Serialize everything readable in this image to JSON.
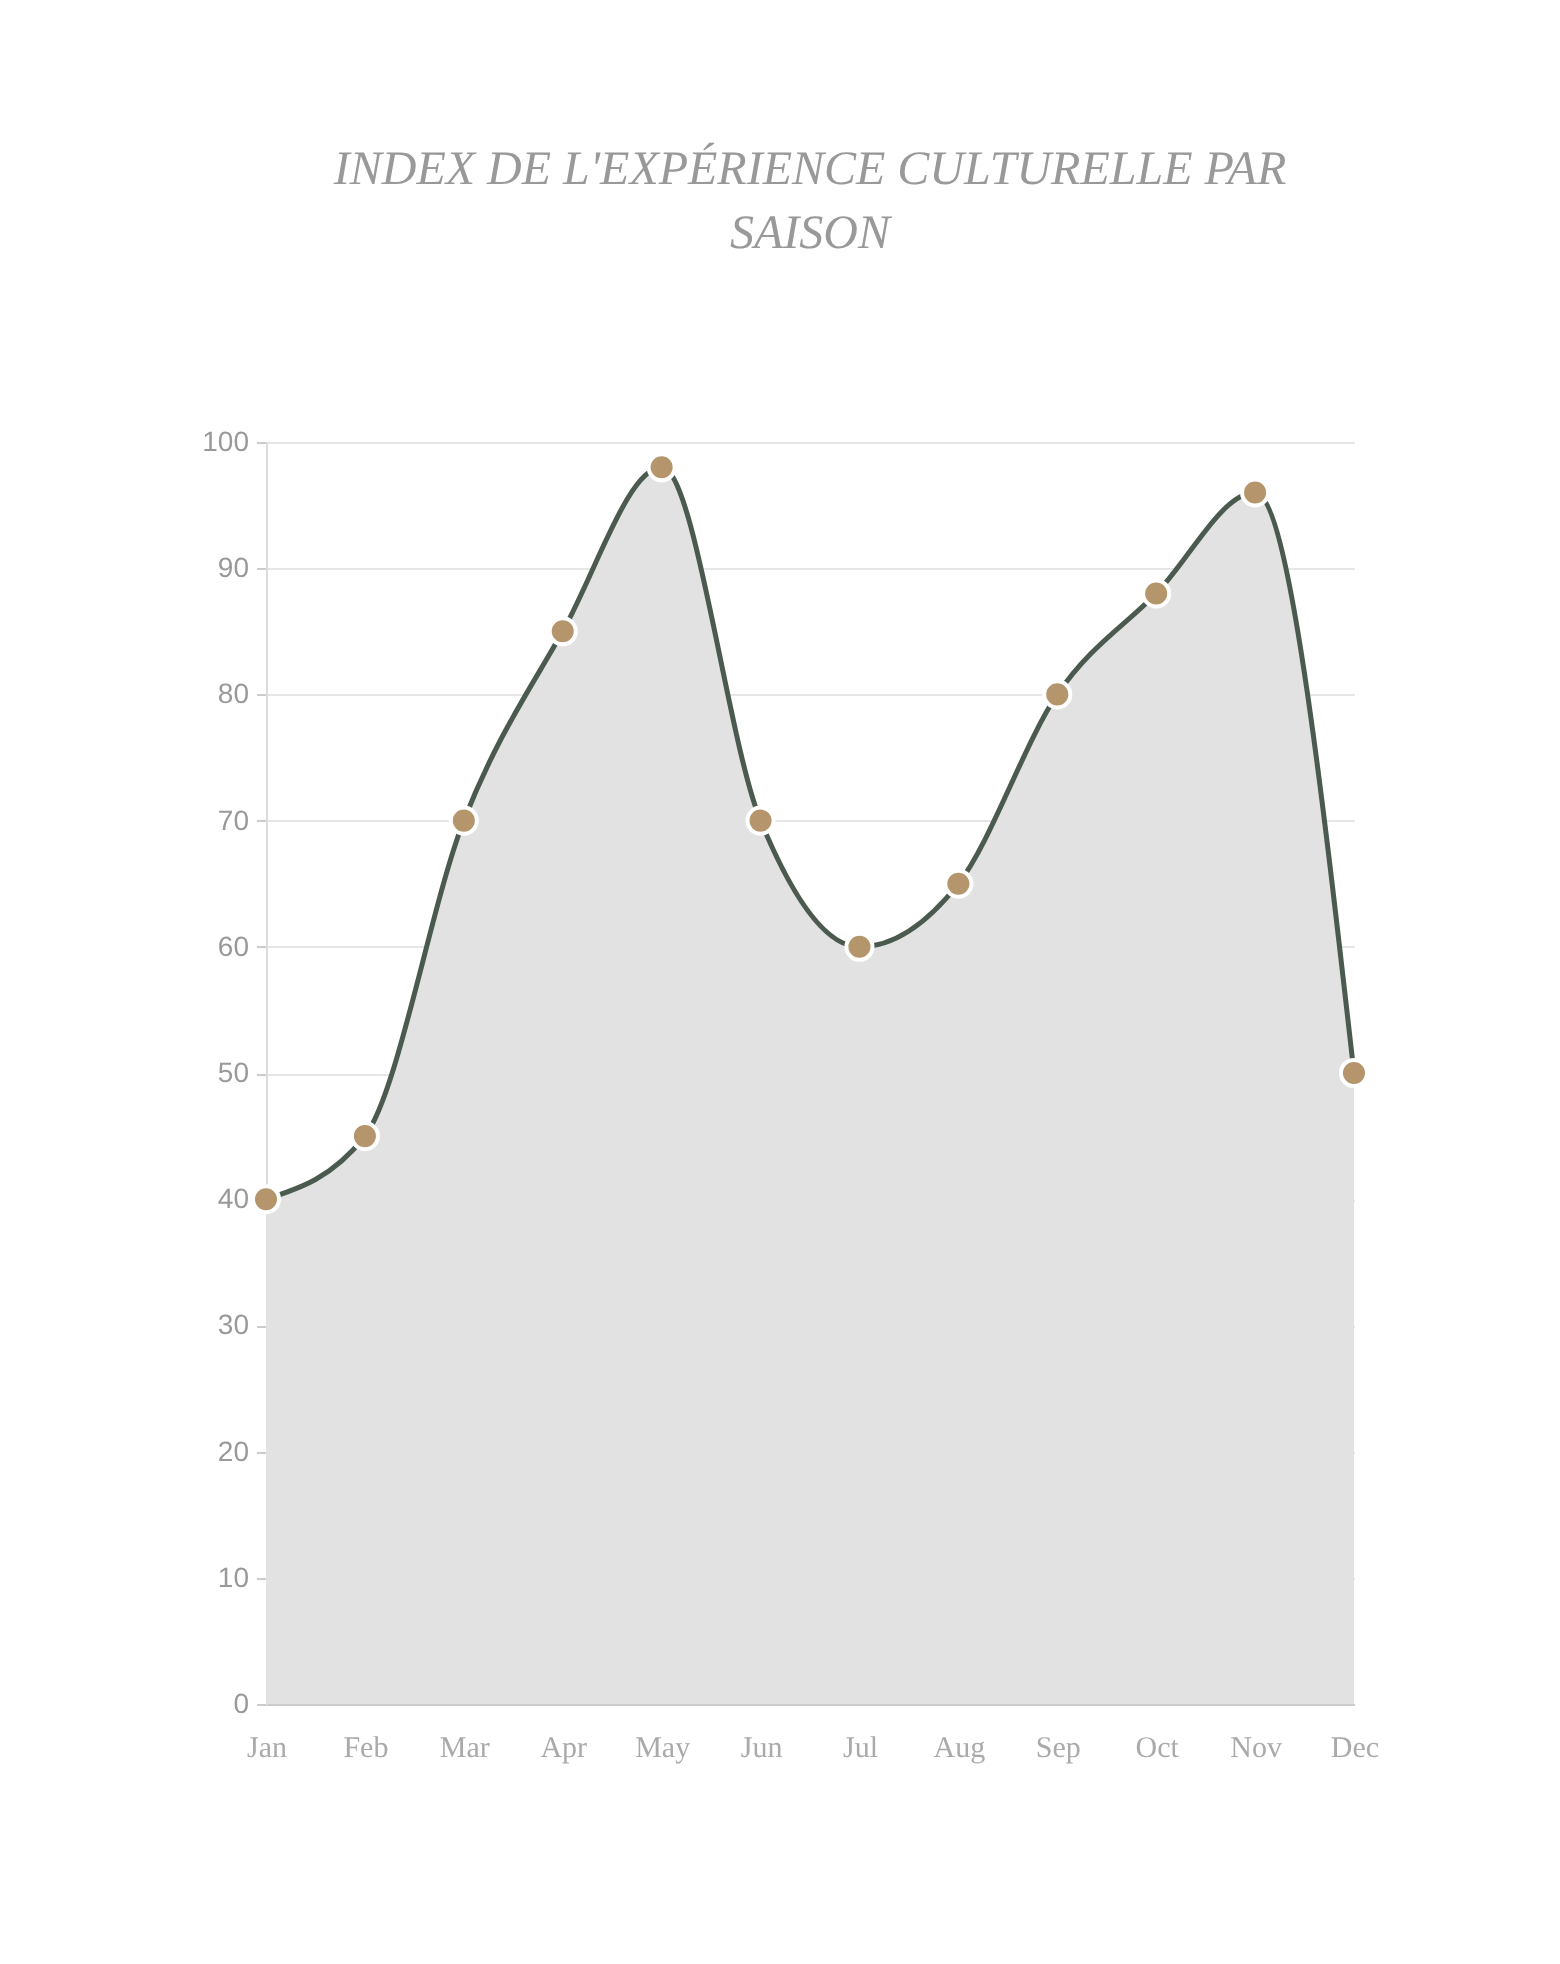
{
  "chart_data": {
    "type": "area",
    "title": "INDEX DE L'EXPÉRIENCE CULTURELLE PAR SAISON",
    "categories": [
      "Jan",
      "Feb",
      "Mar",
      "Apr",
      "May",
      "Jun",
      "Jul",
      "Aug",
      "Sep",
      "Oct",
      "Nov",
      "Dec"
    ],
    "series": [
      {
        "color": "#4b5a4e",
        "values": [
          40,
          45,
          70,
          85,
          98,
          70,
          60,
          65,
          80,
          88,
          96,
          50
        ]
      }
    ],
    "ylim": [
      0,
      100
    ],
    "yticks": [
      0,
      10,
      20,
      30,
      40,
      50,
      60,
      70,
      80,
      90,
      100
    ],
    "grid": "y",
    "marker": "circle",
    "line_style": "solid"
  }
}
